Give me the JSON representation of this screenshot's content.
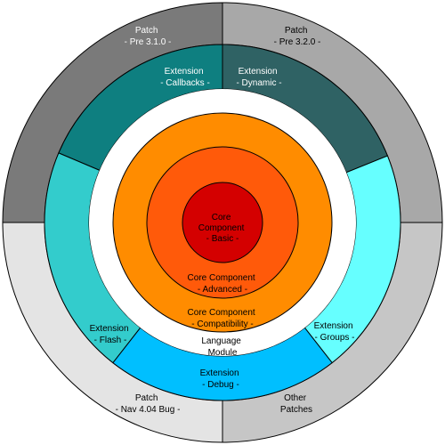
{
  "patches": {
    "top_left": {
      "line1": "Patch",
      "line2": "- Pre 3.1.0 -",
      "color": "#7a7a7a"
    },
    "top_right": {
      "line1": "Patch",
      "line2": "- Pre 3.2.0 -",
      "color": "#a8a8a8"
    },
    "bottom_left": {
      "line1": "Patch",
      "line2": "- Nav 4.04 Bug -",
      "color": "#e4e4e4"
    },
    "bottom_right": {
      "line1": "Other",
      "line2": "Patches",
      "color": "#c6c6c6"
    }
  },
  "extensions": {
    "callbacks": {
      "line1": "Extension",
      "line2": "- Callbacks -",
      "color": "#0e7f80"
    },
    "dynamic": {
      "line1": "Extension",
      "line2": "- Dynamic -",
      "color": "#2f6264"
    },
    "flash": {
      "line1": "Extension",
      "line2": "- Flash -",
      "color": "#33cccc"
    },
    "groups": {
      "line1": "Extension",
      "line2": "- Groups -",
      "color": "#66ffff"
    },
    "debug": {
      "line1": "Extension",
      "line2": "- Debug -",
      "color": "#00bfff"
    }
  },
  "language_module": {
    "line1": "Language",
    "line2": "Module",
    "color": "#ffffff"
  },
  "core": {
    "compatibility": {
      "line1": "Core Component",
      "line2": "- Compatibility -",
      "color": "#ff8c00"
    },
    "advanced": {
      "line1": "Core Component",
      "line2": "- Advanced -",
      "color": "#ff5a0a"
    },
    "basic": {
      "line1": "Core",
      "line2": "Component",
      "line3": "- Basic -",
      "color": "#d40000"
    }
  }
}
